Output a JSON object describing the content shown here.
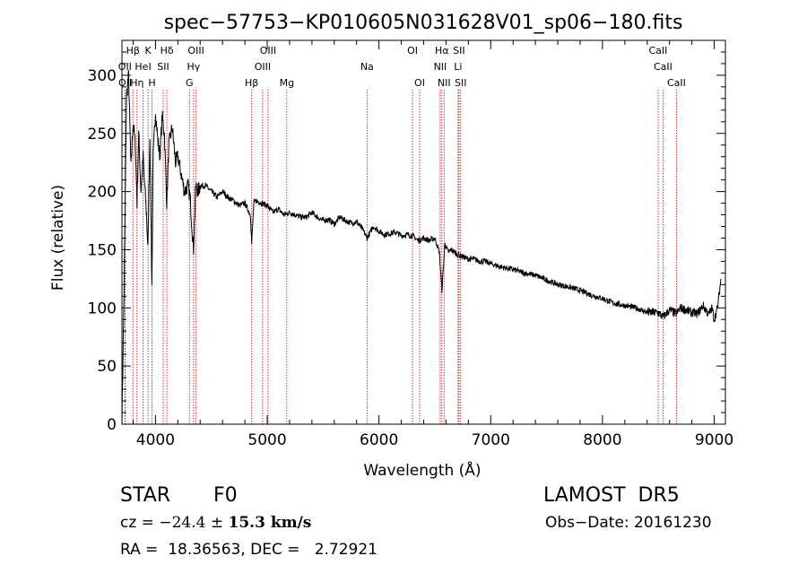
{
  "header": {
    "object_type": "STAR",
    "spectral_type": "F0",
    "survey": "LAMOST  DR5",
    "cz": {
      "label": "cz = ",
      "value": "−24.4",
      "pm": " ± ",
      "error": "15.3",
      "unit": " km/s"
    },
    "obs_date": "Obs−Date: 20161230",
    "ra_dec": "RA =  18.36563, DEC =   2.72921"
  },
  "chart_data": {
    "type": "line",
    "title": "spec−57753−KP010605N031628V01_sp06−180.fits",
    "xlabel": "Wavelength (Å)",
    "ylabel": "Flux (relative)",
    "xlim": [
      3700,
      9100
    ],
    "ylim": [
      0,
      330
    ],
    "xticks": [
      4000,
      5000,
      6000,
      7000,
      8000,
      9000
    ],
    "yticks": [
      0,
      50,
      100,
      150,
      200,
      250,
      300
    ],
    "colors": {
      "line": "#000000",
      "markers": "#cc0000"
    },
    "series": [
      {
        "values_comment_free": true,
        "x": [
          3700,
          3720,
          3740,
          3760,
          3780,
          3800,
          3820,
          3835,
          3850,
          3870,
          3890,
          3900,
          3920,
          3933,
          3950,
          3968,
          3980,
          4000,
          4020,
          4040,
          4060,
          4080,
          4101,
          4120,
          4150,
          4180,
          4200,
          4230,
          4260,
          4290,
          4310,
          4340,
          4360,
          4380,
          4400,
          4450,
          4500,
          4550,
          4600,
          4650,
          4700,
          4750,
          4800,
          4850,
          4861,
          4880,
          4900,
          4950,
          5000,
          5050,
          5100,
          5150,
          5200,
          5250,
          5300,
          5350,
          5400,
          5450,
          5500,
          5550,
          5600,
          5650,
          5700,
          5750,
          5800,
          5850,
          5893,
          5950,
          6000,
          6050,
          6100,
          6150,
          6200,
          6250,
          6300,
          6350,
          6400,
          6450,
          6500,
          6540,
          6563,
          6590,
          6620,
          6650,
          6700,
          6750,
          6800,
          6850,
          6900,
          6950,
          7000,
          7100,
          7200,
          7300,
          7400,
          7500,
          7600,
          7700,
          7800,
          7900,
          8000,
          8100,
          8200,
          8300,
          8400,
          8500,
          8542,
          8600,
          8662,
          8700,
          8750,
          8800,
          8850,
          8900,
          8950,
          8980,
          9000,
          9030,
          9060
        ],
        "y": [
          5,
          120,
          280,
          300,
          220,
          260,
          240,
          190,
          250,
          200,
          230,
          210,
          180,
          150,
          250,
          120,
          230,
          270,
          245,
          230,
          265,
          250,
          190,
          240,
          255,
          225,
          230,
          215,
          200,
          205,
          195,
          150,
          205,
          200,
          205,
          205,
          200,
          195,
          200,
          195,
          192,
          188,
          190,
          180,
          155,
          190,
          192,
          190,
          188,
          182,
          185,
          180,
          182,
          180,
          178,
          178,
          182,
          178,
          175,
          176,
          172,
          178,
          175,
          173,
          174,
          168,
          160,
          170,
          166,
          163,
          164,
          165,
          162,
          163,
          162,
          158,
          160,
          158,
          160,
          148,
          115,
          155,
          148,
          150,
          146,
          144,
          142,
          142,
          140,
          140,
          138,
          135,
          133,
          130,
          128,
          124,
          120,
          118,
          115,
          111,
          108,
          104,
          102,
          100,
          96,
          96,
          92,
          98,
          95,
          100,
          98,
          96,
          95,
          102,
          94,
          100,
          90,
          100,
          125
        ]
      }
    ],
    "line_markers": [
      {
        "label": "Hβ",
        "x": 3798,
        "row": 0
      },
      {
        "label": "K",
        "x": 3934,
        "row": 0
      },
      {
        "label": "Hδ",
        "x": 4102,
        "row": 0
      },
      {
        "label": "OIII",
        "x": 4363,
        "row": 0
      },
      {
        "label": "OIII",
        "x": 5007,
        "row": 0
      },
      {
        "label": "OI",
        "x": 6300,
        "row": 0
      },
      {
        "label": "Hα",
        "x": 6563,
        "row": 0
      },
      {
        "label": "SII",
        "x": 6716,
        "row": 0
      },
      {
        "label": "CaII",
        "x": 8498,
        "row": 0
      },
      {
        "label": "OII",
        "x": 3727,
        "row": 1
      },
      {
        "label": "HeI",
        "x": 3889,
        "row": 1
      },
      {
        "label": "SII",
        "x": 4069,
        "row": 1
      },
      {
        "label": "Hγ",
        "x": 4341,
        "row": 1
      },
      {
        "label": "OIII",
        "x": 4959,
        "row": 1
      },
      {
        "label": "Na",
        "x": 5893,
        "row": 1
      },
      {
        "label": "NII",
        "x": 6548,
        "row": 1
      },
      {
        "label": "Li",
        "x": 6708,
        "row": 1
      },
      {
        "label": "CaII",
        "x": 8542,
        "row": 1
      },
      {
        "label": "OII",
        "x": 3729,
        "row": 2
      },
      {
        "label": "Hη",
        "x": 3835,
        "row": 2
      },
      {
        "label": "H",
        "x": 3969,
        "row": 2
      },
      {
        "label": "G",
        "x": 4304,
        "row": 2
      },
      {
        "label": "Hβ",
        "x": 4861,
        "row": 2
      },
      {
        "label": "Mg",
        "x": 5175,
        "row": 2
      },
      {
        "label": "OI",
        "x": 6364,
        "row": 2
      },
      {
        "label": "NII",
        "x": 6583,
        "row": 2
      },
      {
        "label": "SII",
        "x": 6731,
        "row": 2
      },
      {
        "label": "CaII",
        "x": 8662,
        "row": 2
      }
    ]
  }
}
